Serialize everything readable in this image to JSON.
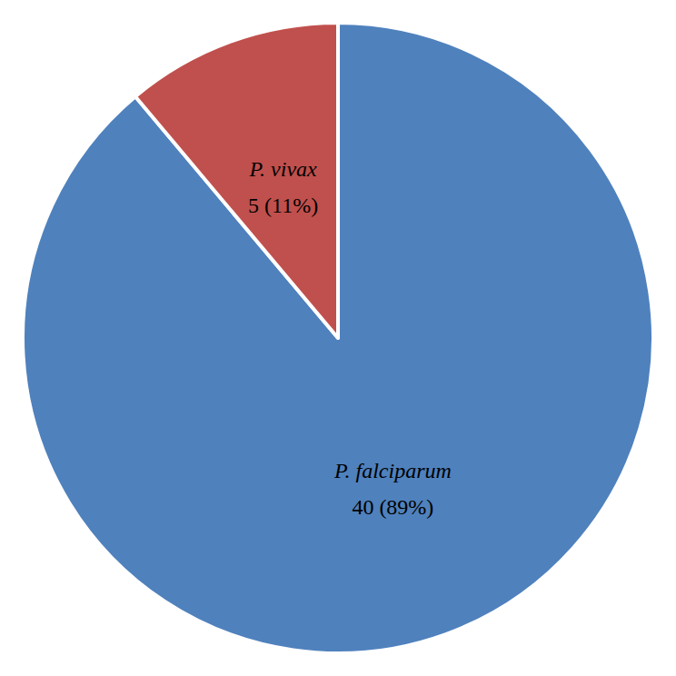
{
  "chart_data": {
    "type": "pie",
    "categories": [
      "P. falciparum",
      "P. vivax"
    ],
    "values": [
      40,
      5
    ],
    "value_labels": [
      "40 (89%)",
      "5 (11%)"
    ],
    "colors": [
      "#4f81bd",
      "#c0504d"
    ],
    "data_labels": true
  }
}
